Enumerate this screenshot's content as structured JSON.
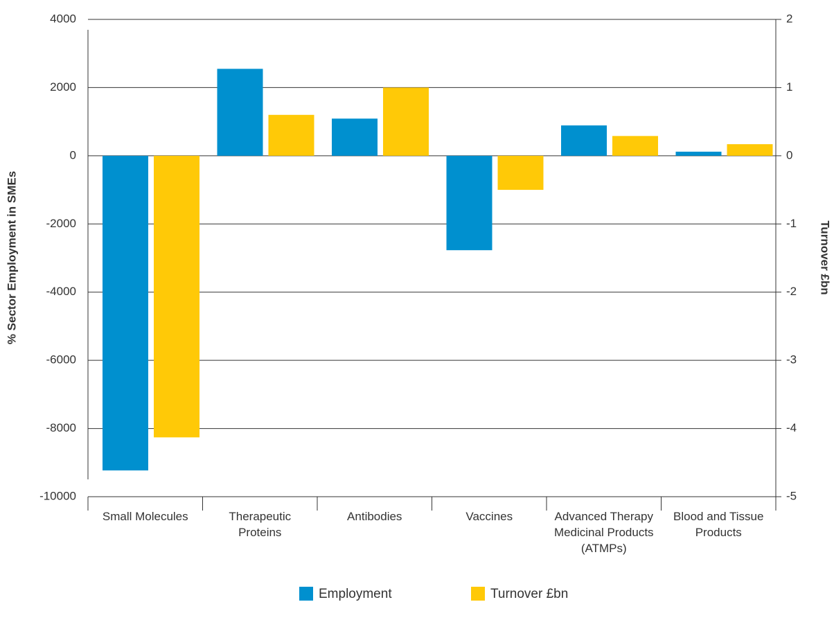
{
  "chart_data": {
    "type": "bar",
    "categories": [
      "Small Molecules",
      "Therapeutic Proteins",
      "Antibodies",
      "Vaccines",
      "Advanced Therapy Medicinal Products (ATMPs)",
      "Blood and Tissue Products"
    ],
    "series": [
      {
        "name": "Employment",
        "color": "#0090cf",
        "values": [
          -9230,
          2550,
          1090,
          -2770,
          890,
          120
        ]
      },
      {
        "name": "Turnover £bn",
        "color": "#ffc907",
        "axis": "y2",
        "values": [
          -4.13,
          0.6,
          1.0,
          -0.5,
          0.29,
          0.17
        ]
      }
    ],
    "y_label": "% Sector Employment in SMEs",
    "y2_label": "Turnover £bn",
    "ylim": [
      -10000,
      4000
    ],
    "yticks": [
      -10000,
      -8000,
      -6000,
      -4000,
      -2000,
      0,
      2000,
      4000
    ],
    "y2lim": [
      -5,
      2
    ],
    "y2ticks": [
      -5,
      -4,
      -3,
      -2,
      -1,
      0,
      1,
      2
    ],
    "grid": true,
    "legend": "bottom"
  }
}
